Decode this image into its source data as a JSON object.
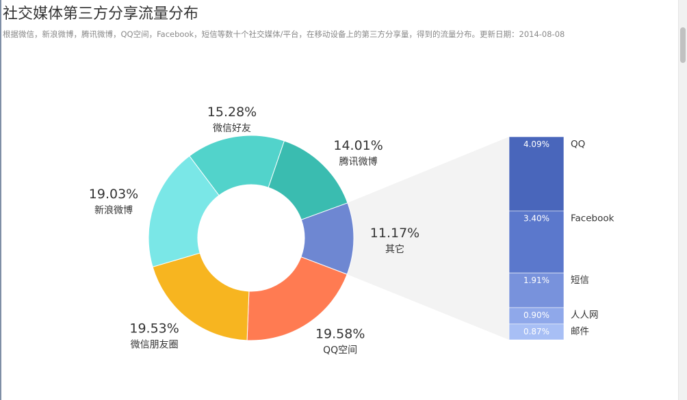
{
  "header": {
    "title": "社交媒体第三方分享流量分布",
    "subtitle": "根据微信，新浪微博，腾讯微博，QQ空间，Facebook，短信等数十个社交媒体/平台，在移动设备上的第三方分享量，得到的流量分布。更新日期：2014-08-08"
  },
  "chart_data": {
    "type": "pie",
    "title": "社交媒体第三方分享流量分布",
    "subtitle": "根据微信，新浪微博，腾讯微博，QQ空间，Facebook，短信等数十个社交媒体/平台，在移动设备上的第三方分享量，得到的流量分布。更新日期：2014-08-08",
    "donut": true,
    "slices": [
      {
        "label": "其它",
        "value": 11.17,
        "text": "11.17%",
        "color": "#6e87d2"
      },
      {
        "label": "QQ空间",
        "value": 19.58,
        "text": "19.58%",
        "color": "#ff7b52"
      },
      {
        "label": "微信朋友圈",
        "value": 19.53,
        "text": "19.53%",
        "color": "#f7b520"
      },
      {
        "label": "新浪微博",
        "value": 19.03,
        "text": "19.03%",
        "color": "#7ae7e7"
      },
      {
        "label": "微信好友",
        "value": 15.28,
        "text": "15.28%",
        "color": "#52d3cb"
      },
      {
        "label": "腾讯微博",
        "value": 14.01,
        "text": "14.01%",
        "color": "#3abcb0"
      }
    ],
    "breakdown": {
      "parent": "其它",
      "type": "stacked-bar",
      "items": [
        {
          "label": "QQ",
          "value": 4.09,
          "text": "4.09%",
          "color": "#4966bb"
        },
        {
          "label": "Facebook",
          "value": 3.4,
          "text": "3.40%",
          "color": "#5b78cc"
        },
        {
          "label": "短信",
          "value": 1.91,
          "text": "1.91%",
          "color": "#7892dc"
        },
        {
          "label": "人人网",
          "value": 0.9,
          "text": "0.90%",
          "color": "#8fa8ea"
        },
        {
          "label": "邮件",
          "value": 0.87,
          "text": "0.87%",
          "color": "#a8bff5"
        }
      ]
    },
    "connector_color": "#f3f3f3"
  }
}
